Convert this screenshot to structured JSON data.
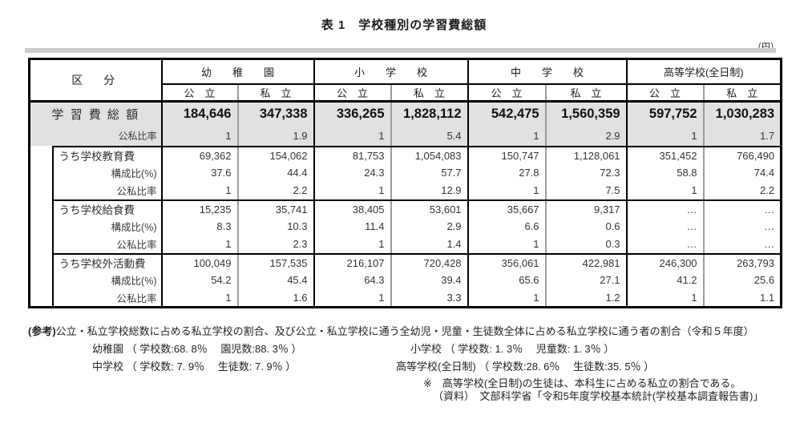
{
  "title": "表 1　学校種別の学習費総額",
  "unit_label": "（円）",
  "table": {
    "corner": "区　分",
    "group_headers": [
      "幼　　稚　　園",
      "小　　学　　校",
      "中　　学　　校",
      "高等学校(全日制)"
    ],
    "col_headers": [
      "公　立",
      "私　立",
      "公　立",
      "私　立",
      "公　立",
      "私　立",
      "公　立",
      "私　立"
    ],
    "summary": {
      "total_label": "学 習 費 総 額",
      "total_values": [
        "184,646",
        "347,338",
        "336,265",
        "1,828,112",
        "542,475",
        "1,560,359",
        "597,752",
        "1,030,283"
      ],
      "ratio_label": "公私比率",
      "ratio_values": [
        "1",
        "1.9",
        "1",
        "5.4",
        "1",
        "2.9",
        "1",
        "1.7"
      ]
    },
    "sections": [
      {
        "label": "うち学校教育費",
        "values": [
          "69,362",
          "154,062",
          "81,753",
          "1,054,083",
          "150,747",
          "1,128,061",
          "351,452",
          "766,490"
        ],
        "comp_label": "構成比(%)",
        "comp_values": [
          "37.6",
          "44.4",
          "24.3",
          "57.7",
          "27.8",
          "72.3",
          "58.8",
          "74.4"
        ],
        "ratio_label": "公私比率",
        "ratio_values": [
          "1",
          "2.2",
          "1",
          "12.9",
          "1",
          "7.5",
          "1",
          "2.2"
        ]
      },
      {
        "label": "うち学校給食費",
        "values": [
          "15,235",
          "35,741",
          "38,405",
          "53,601",
          "35,667",
          "9,317",
          "…",
          "…"
        ],
        "comp_label": "構成比(%)",
        "comp_values": [
          "8.3",
          "10.3",
          "11.4",
          "2.9",
          "6.6",
          "0.6",
          "…",
          "…"
        ],
        "ratio_label": "公私比率",
        "ratio_values": [
          "1",
          "2.3",
          "1",
          "1.4",
          "1",
          "0.3",
          "…",
          "…"
        ]
      },
      {
        "label": "うち学校外活動費",
        "values": [
          "100,049",
          "157,535",
          "216,107",
          "720,428",
          "356,061",
          "422,981",
          "246,300",
          "263,793"
        ],
        "comp_label": "構成比(%)",
        "comp_values": [
          "54.2",
          "45.4",
          "64.3",
          "39.4",
          "65.6",
          "27.1",
          "41.2",
          "25.6"
        ],
        "ratio_label": "公私比率",
        "ratio_values": [
          "1",
          "1.6",
          "1",
          "3.3",
          "1",
          "1.2",
          "1",
          "1.1"
        ]
      }
    ]
  },
  "notes": {
    "ref_label": "(参考)",
    "ref_text": "公立・私立学校総数に占める私立学校の割合、及び公立・私立学校に通う全幼児・児童・生徒数全体に占める私立学校に通う者の割合（令和５年度）",
    "line2_left": "幼稚園 （ 学校数:68. 8％　 園児数:88. 3％ ）",
    "line2_right": "小学校 （ 学校数: 1. 3％　 児童数: 1. 3％ ）",
    "line3_left": "中学校 （ 学校数: 7. 9％　 生徒数: 7. 9％ ）",
    "line3_right": "高等学校(全日制) （ 学校数:28. 6％　 生徒数:35. 5％ ）",
    "note_star": "※　高等学校(全日制)の生徒は、本科生に占める私立の割合である。",
    "source": "（資料）　文部科学省「令和5年度学校基本統計(学校基本調査報告書)」",
    "colors": {
      "band_gray": "#e1e1e1",
      "divider_gray": "#9c9c9c",
      "border_black": "#000000"
    }
  }
}
